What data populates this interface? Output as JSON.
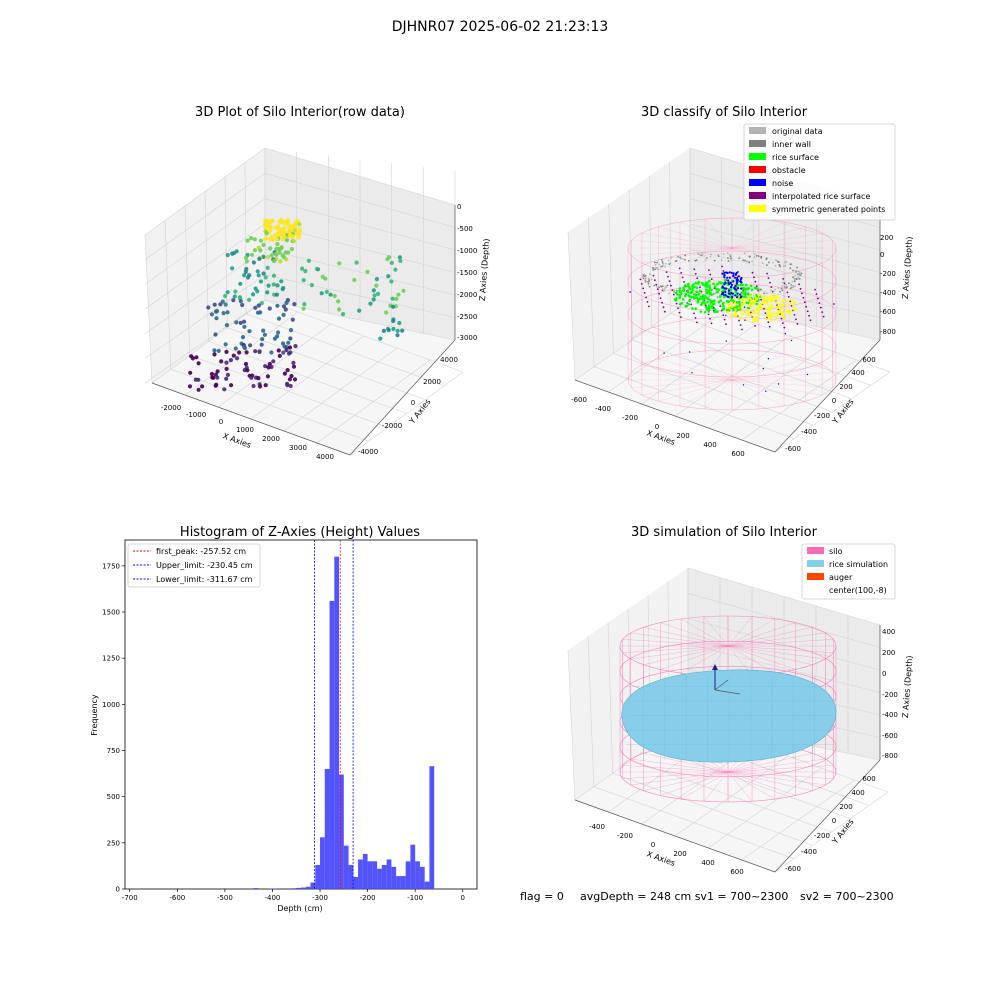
{
  "suptitle": "DJHNR07 2025-06-02 21:23:13",
  "colors": {
    "gray": "#b3b3b3",
    "inner_wall": "#808080",
    "rice_surface": "#00ff00",
    "obstacle": "#ff0000",
    "noise": "#0000ff",
    "interpolated": "#800080",
    "symmetric": "#ffff00",
    "hist_bar": "#4b4bff",
    "silo": "#ff69b4",
    "rice_sim": "#87ceeb",
    "auger": "#ff4500"
  },
  "chart_data": [
    {
      "type": "scatter3d",
      "title": "3D Plot of Silo Interior(row data)",
      "xlabel": "X Axies",
      "ylabel": "Y Axies",
      "zlabel": "Z Axies (Depth)",
      "xlim": [
        -2500,
        4500
      ],
      "ylim": [
        -4500,
        4500
      ],
      "zlim": [
        -3000,
        0
      ],
      "x_ticks": [
        "-2000",
        "-1000",
        "0",
        "1000",
        "2000",
        "3000",
        "4000"
      ],
      "y_ticks": [
        "-4000",
        "-2000",
        "0",
        "2000",
        "4000"
      ],
      "z_ticks": [
        "0",
        "-500",
        "-1000",
        "-1500",
        "-2000",
        "-2500",
        "-3000"
      ],
      "colormap": "viridis"
    },
    {
      "type": "scatter3d",
      "title": "3D classify of Silo Interior",
      "xlabel": "X Axies",
      "ylabel": "Y Axies",
      "zlabel": "Z Axies (Depth)",
      "xlim": [
        -650,
        650
      ],
      "ylim": [
        -650,
        650
      ],
      "zlim": [
        -900,
        300
      ],
      "x_ticks": [
        "-600",
        "-400",
        "-200",
        "0",
        "200",
        "400",
        "600"
      ],
      "y_ticks": [
        "-600",
        "-400",
        "-200",
        "0",
        "200",
        "400",
        "600"
      ],
      "z_ticks": [
        "200",
        "0",
        "-200",
        "-400",
        "-600",
        "-800"
      ],
      "legend_position": "top-right",
      "legend": [
        {
          "label": "original data",
          "color": "#b3b3b3"
        },
        {
          "label": "inner wall",
          "color": "#808080"
        },
        {
          "label": "rice surface",
          "color": "#00ff00"
        },
        {
          "label": "obstacle",
          "color": "#ff0000"
        },
        {
          "label": "noise",
          "color": "#0000ff"
        },
        {
          "label": "interpolated rice surface",
          "color": "#800080"
        },
        {
          "label": "symmetric generated points",
          "color": "#ffff00"
        }
      ]
    },
    {
      "type": "bar",
      "title": "Histogram of Z-Axies (Height) Values",
      "xlabel": "Depth (cm)",
      "ylabel": "Frequency",
      "xlim": [
        -710,
        30
      ],
      "ylim": [
        0,
        1890
      ],
      "x_ticks": [
        -700,
        -600,
        -500,
        -400,
        -300,
        -200,
        -100,
        0
      ],
      "y_ticks": [
        0,
        250,
        500,
        750,
        1000,
        1250,
        1500,
        1750
      ],
      "bin_width": 10,
      "bins": [
        {
          "x": -440,
          "value": 5
        },
        {
          "x": -410,
          "value": 3
        },
        {
          "x": -400,
          "value": 3
        },
        {
          "x": -360,
          "value": 4
        },
        {
          "x": -350,
          "value": 6
        },
        {
          "x": -340,
          "value": 8
        },
        {
          "x": -330,
          "value": 12
        },
        {
          "x": -320,
          "value": 35
        },
        {
          "x": -310,
          "value": 130
        },
        {
          "x": -300,
          "value": 280
        },
        {
          "x": -290,
          "value": 650
        },
        {
          "x": -280,
          "value": 1560
        },
        {
          "x": -270,
          "value": 1800
        },
        {
          "x": -260,
          "value": 620
        },
        {
          "x": -250,
          "value": 235
        },
        {
          "x": -240,
          "value": 130
        },
        {
          "x": -230,
          "value": 65
        },
        {
          "x": -220,
          "value": 160
        },
        {
          "x": -210,
          "value": 190
        },
        {
          "x": -200,
          "value": 150
        },
        {
          "x": -190,
          "value": 150
        },
        {
          "x": -180,
          "value": 110
        },
        {
          "x": -170,
          "value": 130
        },
        {
          "x": -160,
          "value": 160
        },
        {
          "x": -150,
          "value": 120
        },
        {
          "x": -140,
          "value": 70
        },
        {
          "x": -130,
          "value": 70
        },
        {
          "x": -120,
          "value": 150
        },
        {
          "x": -110,
          "value": 240
        },
        {
          "x": -100,
          "value": 150
        },
        {
          "x": -90,
          "value": 120
        },
        {
          "x": -80,
          "value": 40
        },
        {
          "x": -70,
          "value": 665
        }
      ],
      "vlines": [
        {
          "x": -257.52,
          "color": "#ff0000",
          "label": "first_peak: -257.52 cm"
        },
        {
          "x": -230.45,
          "color": "#0000ff",
          "label": "Upper_limit: -230.45 cm"
        },
        {
          "x": -311.67,
          "color": "#0000ff",
          "label": "Lower_limit: -311.67 cm"
        }
      ],
      "legend_position": "top-left"
    },
    {
      "type": "surface3d",
      "title": "3D simulation of Silo Interior",
      "xlabel": "X Axies",
      "ylabel": "Y Axies",
      "zlabel": "Z Axies (Depth)",
      "xlim": [
        -550,
        750
      ],
      "ylim": [
        -650,
        650
      ],
      "zlim": [
        -900,
        500
      ],
      "x_ticks": [
        "-400",
        "-200",
        "0",
        "200",
        "400",
        "600"
      ],
      "y_ticks": [
        "-600",
        "-400",
        "-200",
        "0",
        "200",
        "400",
        "600"
      ],
      "z_ticks": [
        "400",
        "200",
        "0",
        "-200",
        "-400",
        "-600",
        "-800"
      ],
      "legend_position": "top-right",
      "legend": [
        {
          "label": "silo",
          "color": "#ff69b4"
        },
        {
          "label": "rice simulation",
          "color": "#87ceeb"
        },
        {
          "label": "auger",
          "color": "#ff4500"
        },
        {
          "label": "center(100,-8)",
          "color": ""
        }
      ]
    }
  ],
  "footer": {
    "flag": "flag = 0",
    "avg": "avgDepth = 248 cm  sv1 = 700~2300",
    "sv2": "sv2 = 700~2300"
  }
}
